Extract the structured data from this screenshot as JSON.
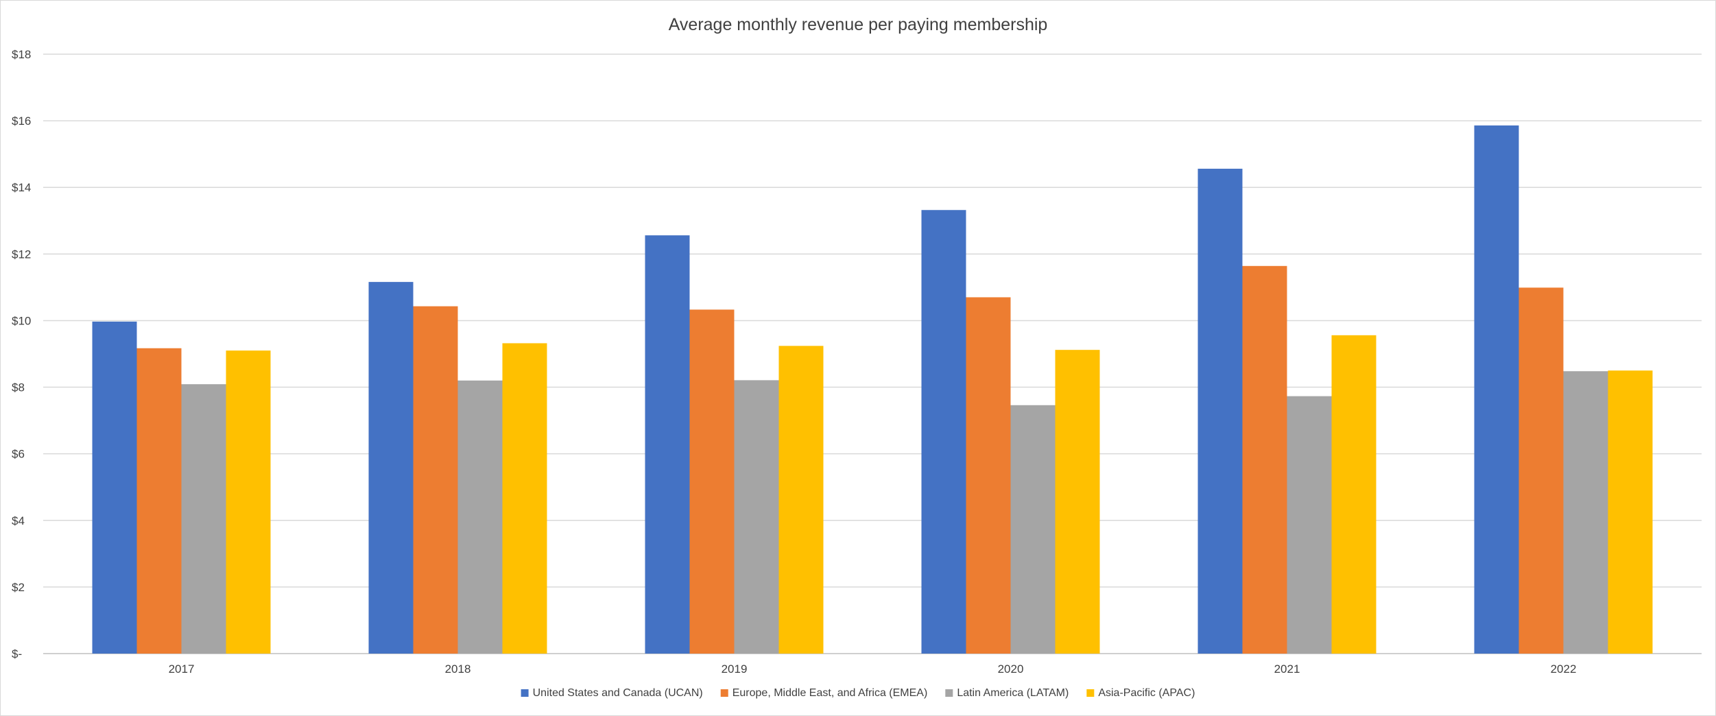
{
  "chart_data": {
    "type": "bar",
    "title": "Average monthly revenue per paying membership",
    "xlabel": "",
    "ylabel": "",
    "categories": [
      "2017",
      "2018",
      "2019",
      "2020",
      "2021",
      "2022"
    ],
    "series": [
      {
        "name": "United States and Canada (UCAN)",
        "color": "#4472c4",
        "values": [
          9.97,
          11.16,
          12.56,
          13.32,
          14.56,
          15.86
        ]
      },
      {
        "name": "Europe, Middle East, and Africa (EMEA)",
        "color": "#ed7d31",
        "values": [
          9.17,
          10.43,
          10.33,
          10.7,
          11.64,
          10.99
        ]
      },
      {
        "name": "Latin America (LATAM)",
        "color": "#a5a5a5",
        "values": [
          8.09,
          8.2,
          8.21,
          7.46,
          7.73,
          8.48
        ]
      },
      {
        "name": "Asia-Pacific (APAC)",
        "color": "#ffc000",
        "values": [
          9.1,
          9.32,
          9.24,
          9.12,
          9.56,
          8.5
        ]
      }
    ],
    "ylim": [
      0,
      18
    ],
    "yticks": [
      0,
      2,
      4,
      6,
      8,
      10,
      12,
      14,
      16,
      18
    ],
    "ytick_labels": [
      "$-",
      "$2",
      "$4",
      "$6",
      "$8",
      "$10",
      "$12",
      "$14",
      "$16",
      "$18"
    ],
    "grid": true,
    "legend_position": "bottom"
  }
}
